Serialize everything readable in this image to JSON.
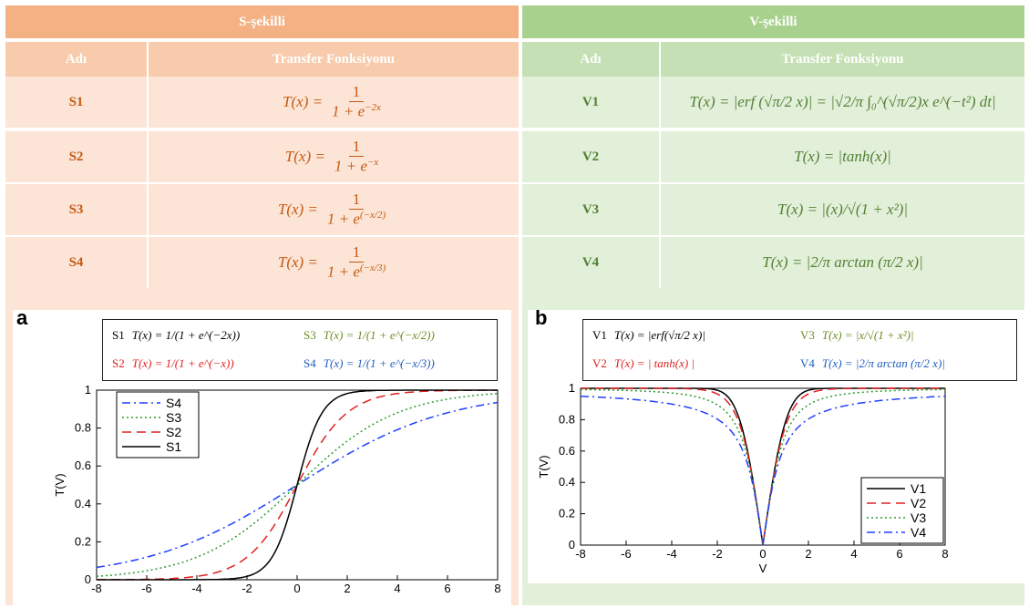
{
  "table": {
    "s_header": "S-şekilli",
    "v_header": "V-şekilli",
    "col_name": "Adı",
    "col_func": "Transfer Fonksiyonu",
    "s_rows": [
      {
        "name": "S1",
        "lhs": "T(x) =",
        "num": "1",
        "den": "1 + e",
        "exp": "−2x"
      },
      {
        "name": "S2",
        "lhs": "T(x) =",
        "num": "1",
        "den": "1 + e",
        "exp": "−x"
      },
      {
        "name": "S3",
        "lhs": "T(x) =",
        "num": "1",
        "den": "1 + e",
        "exp": "(−x/2)"
      },
      {
        "name": "S4",
        "lhs": "T(x) =",
        "num": "1",
        "den": "1 + e",
        "exp": "(−x/3)"
      }
    ],
    "v_rows": [
      {
        "name": "V1",
        "formula": "T(x) = |erf (√π/2 x)| = |√2/π ∫₀^(√π/2)x e^(−t²) dt|"
      },
      {
        "name": "V2",
        "formula": "T(x) = |tanh(x)|"
      },
      {
        "name": "V3",
        "formula": "T(x) = |(x)/√(1 + x²)|"
      },
      {
        "name": "V4",
        "formula": "T(x) = |2/π arctan (π/2 x)|"
      }
    ]
  },
  "figures": {
    "a": {
      "letter": "a",
      "legend_top": [
        {
          "label": "S1",
          "formula": "T(x) = 1/(1 + e^(−2x))",
          "color": "#000000"
        },
        {
          "label": "S2",
          "formula": "T(x) = 1/(1 + e^(−x))",
          "color": "#e02020"
        },
        {
          "label": "S3",
          "formula": "T(x) = 1/(1 + e^(−x/2))",
          "color": "#2e8b2e"
        },
        {
          "label": "S4",
          "formula": "T(x) = 1/(1 + e^(−x/3))",
          "color": "#1f5fbf"
        }
      ]
    },
    "b": {
      "letter": "b",
      "legend_top": [
        {
          "label": "V1",
          "formula": "T(x) = |erf(√π/2 x)|",
          "color": "#000000"
        },
        {
          "label": "V2",
          "formula": "T(x) = | tanh(x) |",
          "color": "#e02020"
        },
        {
          "label": "V3",
          "formula": "T(x) = |x/√(1 + x²)|",
          "color": "#6b8e23"
        },
        {
          "label": "V4",
          "formula": "T(x) = |2/π arctan (π/2 x)|",
          "color": "#1f5fbf"
        }
      ]
    }
  },
  "chart_data": [
    {
      "type": "line",
      "title": "",
      "xlabel": "",
      "ylabel": "T(V)",
      "xlim": [
        -8,
        8
      ],
      "ylim": [
        0,
        1
      ],
      "xticks": [
        "-8",
        "-6",
        "-4",
        "-2",
        "0",
        "2",
        "4",
        "6",
        "8"
      ],
      "yticks": [
        "0",
        "0.2",
        "0.4",
        "0.6",
        "0.8",
        "1"
      ],
      "legend": "top-left",
      "series": [
        {
          "name": "S4",
          "color": "#1f3fff",
          "dash": "dash-dot",
          "x": [
            -8,
            -6,
            -4,
            -2,
            0,
            2,
            4,
            6,
            8
          ],
          "y": [
            0.065,
            0.119,
            0.209,
            0.339,
            0.5,
            0.661,
            0.791,
            0.881,
            0.935
          ]
        },
        {
          "name": "S3",
          "color": "#2e9b2e",
          "dash": "dotted",
          "x": [
            -8,
            -6,
            -4,
            -2,
            0,
            2,
            4,
            6,
            8
          ],
          "y": [
            0.018,
            0.047,
            0.119,
            0.269,
            0.5,
            0.731,
            0.881,
            0.953,
            0.982
          ]
        },
        {
          "name": "S2",
          "color": "#e02020",
          "dash": "dashed",
          "x": [
            -8,
            -6,
            -4,
            -2,
            0,
            2,
            4,
            6,
            8
          ],
          "y": [
            0.0003,
            0.0025,
            0.018,
            0.119,
            0.5,
            0.881,
            0.982,
            0.9975,
            0.9997
          ]
        },
        {
          "name": "S1",
          "color": "#000000",
          "dash": "solid",
          "x": [
            -8,
            -6,
            -4,
            -2,
            -1,
            0,
            1,
            2,
            4,
            6,
            8
          ],
          "y": [
            0,
            0,
            0.0003,
            0.018,
            0.119,
            0.5,
            0.881,
            0.982,
            0.9997,
            1,
            1
          ]
        }
      ]
    },
    {
      "type": "line",
      "title": "",
      "xlabel": "V",
      "ylabel": "T(V)",
      "xlim": [
        -8,
        8
      ],
      "ylim": [
        0,
        1
      ],
      "xticks": [
        "-8",
        "-6",
        "-4",
        "-2",
        "0",
        "2",
        "4",
        "6",
        "8"
      ],
      "yticks": [
        "0",
        "0.2",
        "0.4",
        "0.6",
        "0.8",
        "1"
      ],
      "legend": "bottom-right",
      "series": [
        {
          "name": "V1",
          "color": "#000000",
          "dash": "solid",
          "x": [
            -8,
            -4,
            -2,
            -1,
            -0.5,
            0,
            0.5,
            1,
            2,
            4,
            8
          ],
          "y": [
            1,
            1,
            0.9995,
            0.862,
            0.522,
            0,
            0.522,
            0.862,
            0.9995,
            1,
            1
          ]
        },
        {
          "name": "V2",
          "color": "#e02020",
          "dash": "dashed",
          "x": [
            -8,
            -4,
            -2,
            -1,
            -0.5,
            0,
            0.5,
            1,
            2,
            4,
            8
          ],
          "y": [
            1,
            0.999,
            0.964,
            0.762,
            0.462,
            0,
            0.462,
            0.762,
            0.964,
            0.999,
            1
          ]
        },
        {
          "name": "V3",
          "color": "#2e9b2e",
          "dash": "dotted",
          "x": [
            -8,
            -4,
            -2,
            -1,
            -0.5,
            0,
            0.5,
            1,
            2,
            4,
            8
          ],
          "y": [
            0.992,
            0.97,
            0.894,
            0.707,
            0.447,
            0,
            0.447,
            0.707,
            0.894,
            0.97,
            0.992
          ]
        },
        {
          "name": "V4",
          "color": "#1f3fff",
          "dash": "dash-dot",
          "x": [
            -8,
            -4,
            -2,
            -1,
            -0.5,
            0,
            0.5,
            1,
            2,
            4,
            8
          ],
          "y": [
            0.949,
            0.899,
            0.804,
            0.64,
            0.422,
            0,
            0.422,
            0.64,
            0.804,
            0.899,
            0.949
          ]
        }
      ]
    }
  ]
}
